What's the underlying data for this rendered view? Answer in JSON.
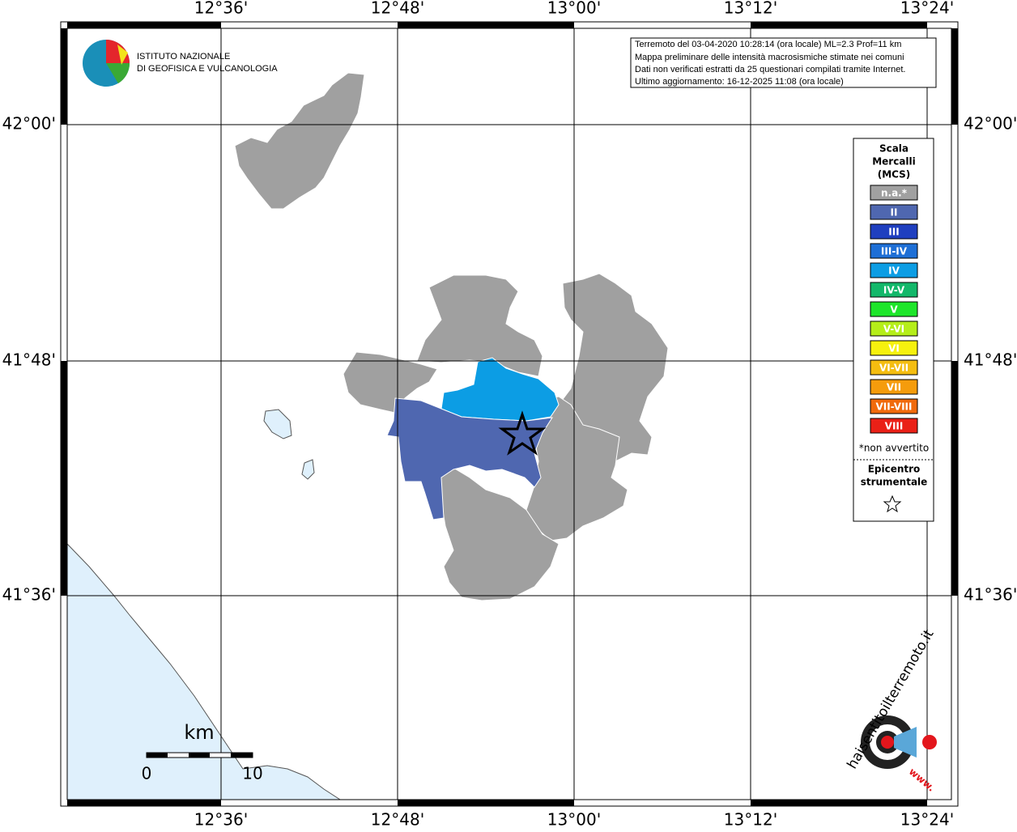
{
  "logo": {
    "line1": "ISTITUTO NAZIONALE",
    "line2": "DI GEOFISICA E VULCANOLOGIA"
  },
  "info_box": [
    "Terremoto del 03-04-2020 10:28:14 (ora locale) ML=2.3 Prof=11 km",
    "Mappa preliminare delle intensità macrosismiche stimate nei comuni",
    "Dati non verificati estratti da 25 questionari compilati tramite Internet.",
    "Ultimo aggiornamento: 16-12-2025 11:08 (ora locale)"
  ],
  "longitudes": [
    "12°36'",
    "12°48'",
    "13°00'",
    "13°12'",
    "13°24'"
  ],
  "latitudes": [
    "42°00'",
    "41°48'",
    "41°36'"
  ],
  "legend": {
    "title": [
      "Scala",
      "Mercalli",
      "(MCS)"
    ],
    "items": [
      {
        "label": "n.a.*",
        "color": "#a0a0a0"
      },
      {
        "label": "II",
        "color": "#4f67b0"
      },
      {
        "label": "III",
        "color": "#1f3fbf"
      },
      {
        "label": "III-IV",
        "color": "#1e6fd6"
      },
      {
        "label": "IV",
        "color": "#0c9de4"
      },
      {
        "label": "IV-V",
        "color": "#13b86a"
      },
      {
        "label": "V",
        "color": "#1ee62a"
      },
      {
        "label": "V-VI",
        "color": "#b5ee1a"
      },
      {
        "label": "VI",
        "color": "#f6f10e"
      },
      {
        "label": "VI-VII",
        "color": "#f4bd10"
      },
      {
        "label": "VII",
        "color": "#f59c0c"
      },
      {
        "label": "VII-VIII",
        "color": "#f06a0c"
      },
      {
        "label": "VIII",
        "color": "#ea2017"
      }
    ],
    "footnote": "*non avvertito",
    "epicenter": [
      "Epicentro",
      "strumentale"
    ]
  },
  "scale_bar": {
    "unit": "km",
    "start": "0",
    "end": "10"
  },
  "badge": {
    "text": "haisentitoilterremoto.it",
    "www": "www."
  }
}
